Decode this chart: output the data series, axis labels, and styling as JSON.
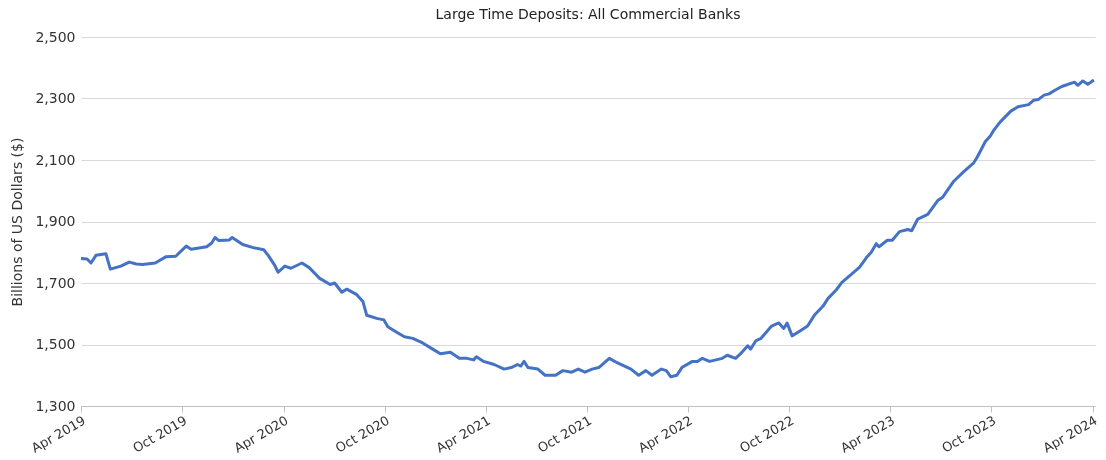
{
  "chart_data": {
    "type": "line",
    "title": "Large Time Deposits: All Commercial Banks",
    "ylabel": "Billions of US Dollars ($)",
    "x": [
      "2019-04-01",
      "2019-04-12",
      "2019-04-19",
      "2019-04-28",
      "2019-05-16",
      "2019-05-24",
      "2019-06-12",
      "2019-06-27",
      "2019-07-10",
      "2019-07-21",
      "2019-08-13",
      "2019-09-01",
      "2019-09-19",
      "2019-10-08",
      "2019-10-17",
      "2019-11-14",
      "2019-11-23",
      "2019-11-29",
      "2019-12-06",
      "2019-12-25",
      "2019-12-30",
      "2020-01-18",
      "2020-02-06",
      "2020-02-25",
      "2020-03-04",
      "2020-03-15",
      "2020-03-22",
      "2020-04-03",
      "2020-04-14",
      "2020-05-04",
      "2020-05-17",
      "2020-06-05",
      "2020-06-24",
      "2020-07-02",
      "2020-07-15",
      "2020-07-24",
      "2020-08-11",
      "2020-08-22",
      "2020-08-29",
      "2020-09-16",
      "2020-09-29",
      "2020-10-06",
      "2020-10-22",
      "2020-11-05",
      "2020-11-20",
      "2020-12-08",
      "2020-12-26",
      "2021-01-09",
      "2021-01-27",
      "2021-02-12",
      "2021-02-26",
      "2021-03-10",
      "2021-03-15",
      "2021-03-28",
      "2021-04-16",
      "2021-05-04",
      "2021-05-17",
      "2021-05-28",
      "2021-06-03",
      "2021-06-09",
      "2021-06-16",
      "2021-07-04",
      "2021-07-17",
      "2021-08-05",
      "2021-08-18",
      "2021-09-03",
      "2021-09-15",
      "2021-09-27",
      "2021-10-10",
      "2021-10-22",
      "2021-11-10",
      "2021-11-25",
      "2021-12-19",
      "2022-01-02",
      "2022-01-15",
      "2022-01-26",
      "2022-02-12",
      "2022-02-21",
      "2022-03-01",
      "2022-03-12",
      "2022-03-21",
      "2022-04-09",
      "2022-04-18",
      "2022-04-27",
      "2022-05-10",
      "2022-06-02",
      "2022-06-11",
      "2022-06-26",
      "2022-07-05",
      "2022-07-18",
      "2022-07-23",
      "2022-08-02",
      "2022-08-11",
      "2022-08-30",
      "2022-09-12",
      "2022-09-21",
      "2022-09-27",
      "2022-10-06",
      "2022-10-21",
      "2022-11-03",
      "2022-11-16",
      "2022-12-01",
      "2022-12-10",
      "2022-12-25",
      "2023-01-04",
      "2023-01-22",
      "2023-02-05",
      "2023-02-17",
      "2023-02-26",
      "2023-03-07",
      "2023-03-12",
      "2023-03-27",
      "2023-04-05",
      "2023-04-18",
      "2023-05-03",
      "2023-05-10",
      "2023-05-21",
      "2023-06-08",
      "2023-06-26",
      "2023-07-05",
      "2023-07-25",
      "2023-08-12",
      "2023-08-30",
      "2023-09-05",
      "2023-09-20",
      "2023-09-29",
      "2023-10-06",
      "2023-10-17",
      "2023-11-05",
      "2023-11-18",
      "2023-12-07",
      "2023-12-16",
      "2023-12-25",
      "2024-01-04",
      "2024-01-13",
      "2024-01-22",
      "2024-02-05",
      "2024-02-28",
      "2024-03-05",
      "2024-03-14",
      "2024-03-23",
      "2024-04-03"
    ],
    "series": [
      {
        "color": "#4472c4",
        "values": [
          1780,
          1778,
          1765,
          1790,
          1795,
          1745,
          1755,
          1768,
          1762,
          1760,
          1765,
          1785,
          1787,
          1820,
          1810,
          1818,
          1830,
          1848,
          1838,
          1840,
          1848,
          1825,
          1815,
          1808,
          1790,
          1760,
          1735,
          1755,
          1748,
          1765,
          1750,
          1715,
          1695,
          1700,
          1670,
          1680,
          1662,
          1640,
          1595,
          1585,
          1580,
          1558,
          1540,
          1525,
          1520,
          1505,
          1485,
          1470,
          1475,
          1455,
          1455,
          1450,
          1460,
          1445,
          1435,
          1420,
          1425,
          1435,
          1430,
          1445,
          1425,
          1420,
          1400,
          1400,
          1415,
          1410,
          1420,
          1410,
          1420,
          1425,
          1455,
          1440,
          1420,
          1400,
          1415,
          1400,
          1420,
          1415,
          1395,
          1400,
          1425,
          1445,
          1445,
          1455,
          1445,
          1455,
          1465,
          1455,
          1470,
          1496,
          1485,
          1513,
          1520,
          1560,
          1570,
          1552,
          1570,
          1528,
          1545,
          1560,
          1597,
          1625,
          1650,
          1678,
          1702,
          1730,
          1752,
          1782,
          1800,
          1828,
          1818,
          1839,
          1839,
          1867,
          1874,
          1870,
          1908,
          1923,
          1968,
          1979,
          2031,
          2062,
          2091,
          2108,
          2160,
          2178,
          2199,
          2224,
          2259,
          2273,
          2280,
          2294,
          2297,
          2311,
          2315,
          2325,
          2339,
          2353,
          2343,
          2357,
          2346,
          2360
        ]
      }
    ],
    "xlim": [
      "2019-04-01",
      "2024-04-05"
    ],
    "xticks": [
      {
        "value": "2019-04-01",
        "label": "Apr 2019"
      },
      {
        "value": "2019-10-01",
        "label": "Oct 2019"
      },
      {
        "value": "2020-04-01",
        "label": "Apr 2020"
      },
      {
        "value": "2020-10-01",
        "label": "Oct 2020"
      },
      {
        "value": "2021-04-01",
        "label": "Apr 2021"
      },
      {
        "value": "2021-10-01",
        "label": "Oct 2021"
      },
      {
        "value": "2022-04-01",
        "label": "Apr 2022"
      },
      {
        "value": "2022-10-01",
        "label": "Oct 2022"
      },
      {
        "value": "2023-04-01",
        "label": "Apr 2023"
      },
      {
        "value": "2023-10-01",
        "label": "Oct 2023"
      },
      {
        "value": "2024-04-01",
        "label": "Apr 2024"
      }
    ],
    "ylim": [
      1300,
      2500
    ],
    "yticks": [
      {
        "value": 1300,
        "label": "1,300"
      },
      {
        "value": 1500,
        "label": "1,500"
      },
      {
        "value": 1700,
        "label": "1,700"
      },
      {
        "value": 1900,
        "label": "1,900"
      },
      {
        "value": 2100,
        "label": "2,100"
      },
      {
        "value": 2300,
        "label": "2,300"
      },
      {
        "value": 2500,
        "label": "2,500"
      }
    ],
    "grid": "y",
    "line_style": "solid"
  }
}
